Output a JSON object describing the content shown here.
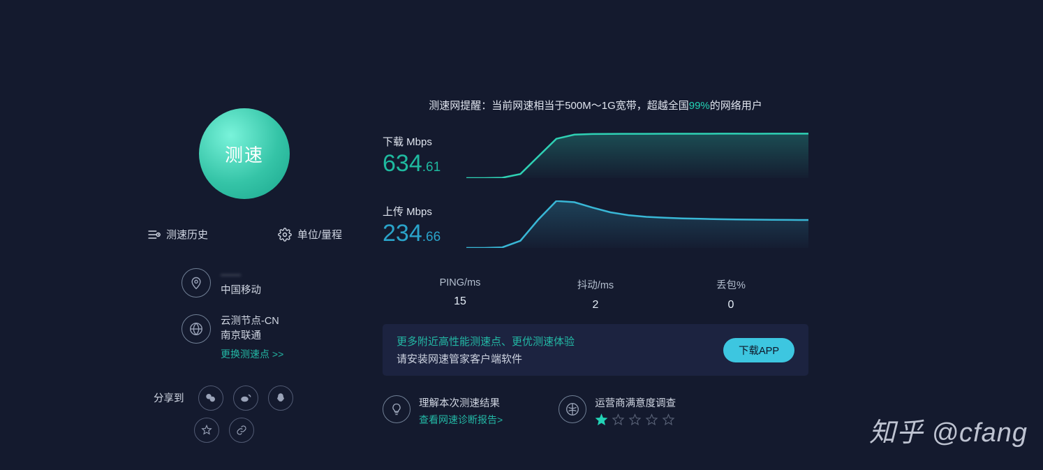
{
  "colors": {
    "bg": "#141a2e",
    "accent_teal": "#23b8a5",
    "download_color": "#1fb99f",
    "upload_color": "#2aa3c9",
    "banner_bg": "#1c2340",
    "btn_bg": "#3dc6e0",
    "star_fill": "#23d3b6",
    "star_empty": "#5a6378"
  },
  "left": {
    "speed_button": "测速",
    "history": "测速历史",
    "units": "单位/量程",
    "isp": {
      "name_masked": "——",
      "carrier": "中国移动"
    },
    "node": {
      "title": "云测节点-CN",
      "loc": "南京联通",
      "change": "更换测速点 >>"
    },
    "share": "分享到"
  },
  "tip": {
    "prefix": "测速网提醒：当前网速相当于500M～1G宽带，超越全国",
    "pct": "99%",
    "suffix": "的网络用户"
  },
  "download": {
    "label": "下载 Mbps",
    "int": "634",
    "dec": ".61",
    "chart": {
      "type": "line",
      "stroke": "#2fd1b4",
      "stroke_width": 2.5,
      "fill_top": "rgba(47,209,180,0.28)",
      "fill_bottom": "rgba(47,209,180,0.02)",
      "background": "transparent",
      "y_range": [
        0,
        700
      ],
      "points": [
        0,
        0,
        5,
        60,
        320,
        580,
        640,
        650,
        652,
        653,
        653,
        654,
        654,
        654,
        655,
        655,
        654,
        655,
        655,
        655
      ]
    }
  },
  "upload": {
    "label": "上传 Mbps",
    "int": "234",
    "dec": ".66",
    "chart": {
      "type": "line",
      "stroke": "#39b7d6",
      "stroke_width": 2.5,
      "fill_top": "rgba(57,183,214,0.25)",
      "fill_bottom": "rgba(57,183,214,0.02)",
      "background": "transparent",
      "y_range": [
        0,
        400
      ],
      "points": [
        0,
        0,
        5,
        60,
        240,
        395,
        385,
        340,
        300,
        276,
        262,
        254,
        248,
        245,
        242,
        240,
        238,
        237,
        236,
        235
      ]
    }
  },
  "stats": {
    "ping": {
      "label": "PING/ms",
      "value": "15"
    },
    "jitter": {
      "label": "抖动/ms",
      "value": "2"
    },
    "loss": {
      "label": "丢包%",
      "value": "0"
    }
  },
  "banner": {
    "line1": "更多附近高性能测速点、更优测速体验",
    "line2": "请安装网速管家客户端软件",
    "button": "下载APP"
  },
  "footer": {
    "understand": {
      "title": "理解本次测速结果",
      "link": "查看网速诊断报告>"
    },
    "survey": {
      "title": "运营商满意度调查",
      "rating": 1,
      "max": 5
    }
  },
  "watermark": "知乎 @cfang"
}
